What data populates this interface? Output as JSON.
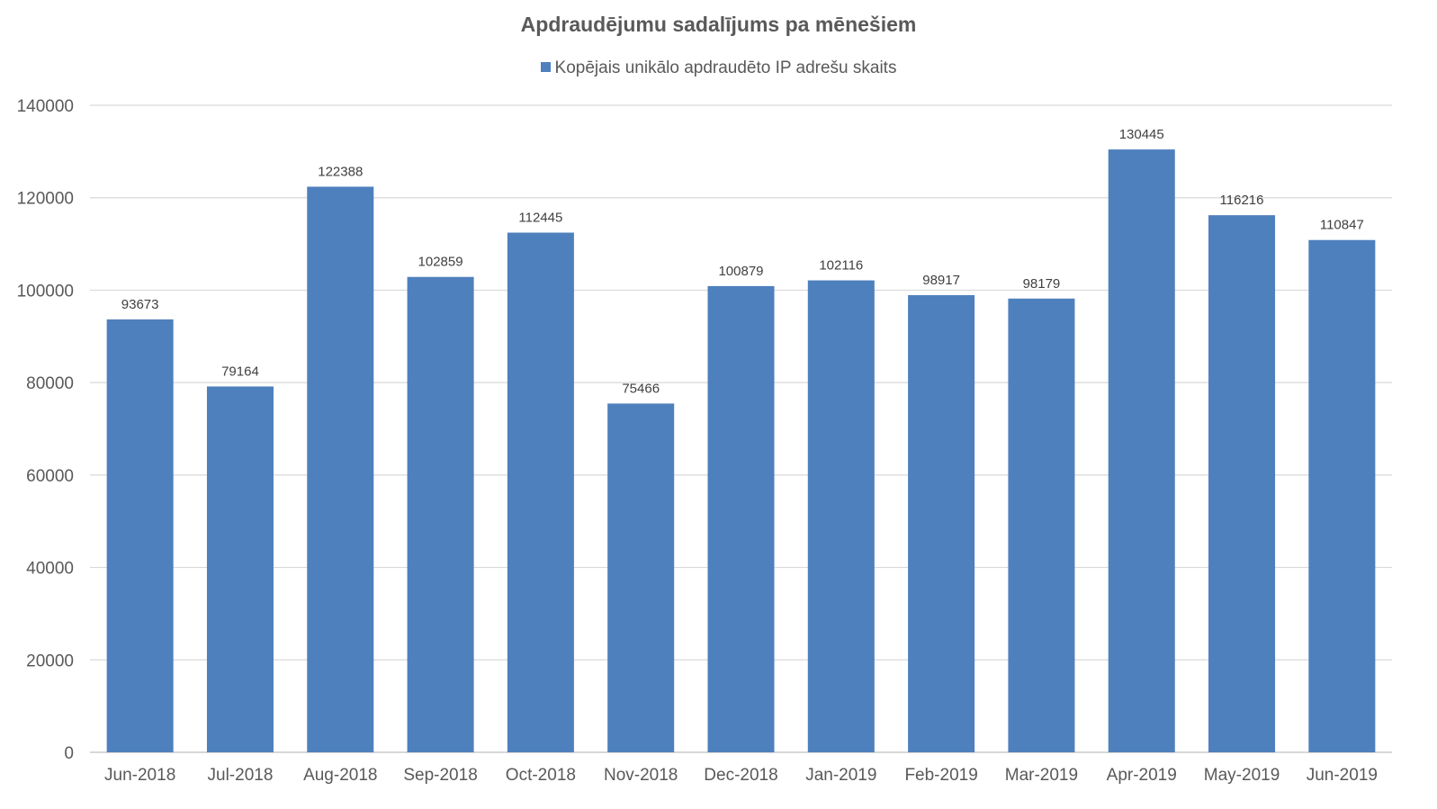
{
  "chart_data": {
    "type": "bar",
    "title": "Apdraudējumu sadalījums pa mēnešiem",
    "xlabel": "",
    "ylabel": "",
    "ylim": [
      0,
      140000
    ],
    "yticks": [
      0,
      20000,
      40000,
      60000,
      80000,
      100000,
      120000,
      140000
    ],
    "grid": true,
    "legend_position": "top",
    "bar_color": "#4e80bd",
    "categories": [
      "Jun-2018",
      "Jul-2018",
      "Aug-2018",
      "Sep-2018",
      "Oct-2018",
      "Nov-2018",
      "Dec-2018",
      "Jan-2019",
      "Feb-2019",
      "Mar-2019",
      "Apr-2019",
      "May-2019",
      "Jun-2019"
    ],
    "series": [
      {
        "name": "Kopējais unikālo apdraudēto IP adrešu skaits",
        "values": [
          93673,
          79164,
          122388,
          102859,
          112445,
          75466,
          100879,
          102116,
          98917,
          98179,
          130445,
          116216,
          110847
        ]
      }
    ]
  }
}
